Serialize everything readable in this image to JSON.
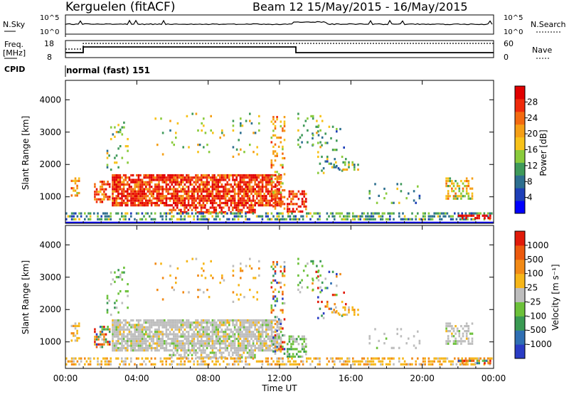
{
  "header": {
    "station": "Kerguelen (fitACF)",
    "beam_info": "Beam 12  15/May/2015 - 16/May/2015"
  },
  "top_panel": {
    "left_label": "N.Sky",
    "left_ticks": [
      "10^5",
      "10^0"
    ],
    "right_ticks": [
      "10^5",
      "10^0"
    ],
    "right_label": "N.Search",
    "freq_label": "Freq.",
    "freq_unit": "[MHz]",
    "freq_ticks": [
      "18",
      "8"
    ],
    "nave_ticks": [
      "60",
      "0"
    ],
    "nave_label": "Nave",
    "cpid_label": "CPID",
    "cpid_value": "normal (fast) 151"
  },
  "chart_data": [
    {
      "type": "heatmap",
      "title": "",
      "xlabel": "",
      "ylabel": "Slant Range [km]",
      "x_ticks": [
        "00:00",
        "04:00",
        "08:00",
        "12:00",
        "16:00",
        "20:00",
        "00:00"
      ],
      "xlim_hours": [
        0,
        24
      ],
      "y_ticks": [
        "1000",
        "2000",
        "3000",
        "4000"
      ],
      "ylim": [
        180,
        4600
      ],
      "colorbar_label": "Power [dB]",
      "colorbar_ticks": [
        "28",
        "24",
        "20",
        "16",
        "12",
        "8",
        "4"
      ],
      "colors": [
        "#0000ff",
        "#1e3fb8",
        "#2d6f8f",
        "#3f9a5a",
        "#8acb3c",
        "#f7c21a",
        "#f59f16",
        "#f36a10",
        "#ef2a0b",
        "#e10000"
      ]
    },
    {
      "type": "heatmap",
      "title": "",
      "xlabel": "Time UT",
      "ylabel": "Slant Range [km]",
      "x_ticks": [
        "00:00",
        "04:00",
        "08:00",
        "12:00",
        "16:00",
        "20:00",
        "00:00"
      ],
      "xlim_hours": [
        0,
        24
      ],
      "y_ticks": [
        "1000",
        "2000",
        "3000",
        "4000"
      ],
      "ylim": [
        180,
        4600
      ],
      "colorbar_label": "Velocity [m s⁻¹]",
      "colorbar_ticks": [
        "1000",
        "500",
        "100",
        "25",
        "-25",
        "-100",
        "-500",
        "-1000"
      ],
      "colors": [
        "#2a3cc4",
        "#2f6fb3",
        "#3a9a53",
        "#6cc13a",
        "#bdbdbd",
        "#f6b619",
        "#f28a16",
        "#ec5a0e",
        "#e11b0a"
      ]
    }
  ]
}
